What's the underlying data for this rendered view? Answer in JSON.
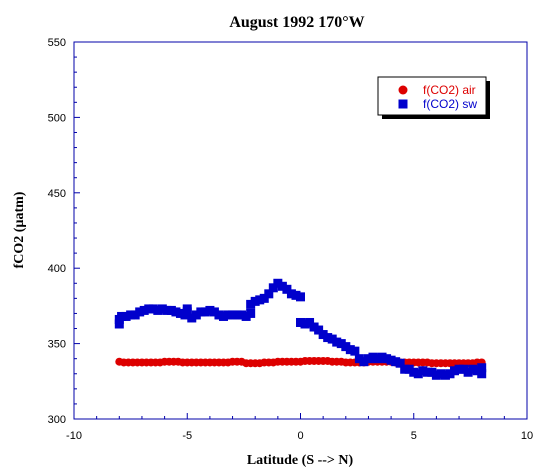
{
  "chart_data": {
    "type": "scatter",
    "title": "August 1992 170°W",
    "xlabel": "Latitude (S --> N)",
    "ylabel": "fCO2 (µatm)",
    "xlim": [
      -10,
      10
    ],
    "ylim": [
      300,
      550
    ],
    "xticks": [
      -10,
      -5,
      0,
      5,
      10
    ],
    "yticks": [
      300,
      350,
      400,
      450,
      500,
      550
    ],
    "grid": false,
    "legend_position": "top-right",
    "series": [
      {
        "name": "f(CO2) air",
        "color": "#dd0000",
        "marker": "circle",
        "points": [
          [
            -8.0,
            338
          ],
          [
            -7.8,
            337.5
          ],
          [
            -7.6,
            337.5
          ],
          [
            -7.4,
            337.5
          ],
          [
            -7.2,
            337.5
          ],
          [
            -7.0,
            337.5
          ],
          [
            -6.8,
            337.5
          ],
          [
            -6.6,
            337.5
          ],
          [
            -6.4,
            337.5
          ],
          [
            -6.2,
            337.5
          ],
          [
            -6.0,
            338
          ],
          [
            -5.8,
            338
          ],
          [
            -5.6,
            338
          ],
          [
            -5.4,
            338
          ],
          [
            -5.2,
            337.5
          ],
          [
            -5.0,
            337.5
          ],
          [
            -4.8,
            337.5
          ],
          [
            -4.6,
            337.5
          ],
          [
            -4.4,
            337.5
          ],
          [
            -4.2,
            337.5
          ],
          [
            -4.0,
            337.5
          ],
          [
            -3.8,
            337.5
          ],
          [
            -3.6,
            337.5
          ],
          [
            -3.4,
            337.5
          ],
          [
            -3.2,
            337.5
          ],
          [
            -3.0,
            338
          ],
          [
            -2.8,
            338
          ],
          [
            -2.6,
            338
          ],
          [
            -2.4,
            337
          ],
          [
            -2.2,
            337
          ],
          [
            -2.0,
            337
          ],
          [
            -1.8,
            337
          ],
          [
            -1.6,
            337.5
          ],
          [
            -1.4,
            337.5
          ],
          [
            -1.2,
            337.5
          ],
          [
            -1.0,
            338
          ],
          [
            -0.8,
            338
          ],
          [
            -0.6,
            338
          ],
          [
            -0.4,
            338
          ],
          [
            -0.2,
            338
          ],
          [
            0.0,
            338
          ],
          [
            0.2,
            338.5
          ],
          [
            0.4,
            338.5
          ],
          [
            0.6,
            338.5
          ],
          [
            0.8,
            338.5
          ],
          [
            1.0,
            338.5
          ],
          [
            1.2,
            338.5
          ],
          [
            1.4,
            338
          ],
          [
            1.6,
            338
          ],
          [
            1.8,
            338
          ],
          [
            2.0,
            337.5
          ],
          [
            2.2,
            337.5
          ],
          [
            2.4,
            337.5
          ],
          [
            2.6,
            337.5
          ],
          [
            2.8,
            337.5
          ],
          [
            3.0,
            338
          ],
          [
            3.2,
            338
          ],
          [
            3.4,
            338
          ],
          [
            3.6,
            338
          ],
          [
            3.8,
            338
          ],
          [
            4.0,
            338
          ],
          [
            4.2,
            337.5
          ],
          [
            4.4,
            337.5
          ],
          [
            4.6,
            337.5
          ],
          [
            4.8,
            337.5
          ],
          [
            5.0,
            337.5
          ],
          [
            5.2,
            337.5
          ],
          [
            5.4,
            337.5
          ],
          [
            5.6,
            337.5
          ],
          [
            5.8,
            337
          ],
          [
            6.0,
            337
          ],
          [
            6.2,
            337
          ],
          [
            6.4,
            337
          ],
          [
            6.6,
            337
          ],
          [
            6.8,
            337
          ],
          [
            7.0,
            337
          ],
          [
            7.2,
            337
          ],
          [
            7.4,
            337
          ],
          [
            7.6,
            337
          ],
          [
            7.8,
            337.5
          ],
          [
            8.0,
            337.5
          ]
        ]
      },
      {
        "name": "f(CO2) sw",
        "color": "#0000cc",
        "marker": "square",
        "points": [
          [
            -8.0,
            363
          ],
          [
            -8.0,
            366
          ],
          [
            -7.9,
            368
          ],
          [
            -7.7,
            368
          ],
          [
            -7.5,
            369
          ],
          [
            -7.3,
            369
          ],
          [
            -7.1,
            371
          ],
          [
            -6.9,
            372
          ],
          [
            -6.7,
            373
          ],
          [
            -6.5,
            373
          ],
          [
            -6.3,
            372
          ],
          [
            -6.1,
            373
          ],
          [
            -5.9,
            372
          ],
          [
            -5.7,
            372
          ],
          [
            -5.5,
            371
          ],
          [
            -5.3,
            370
          ],
          [
            -5.1,
            369
          ],
          [
            -5.0,
            373
          ],
          [
            -5.0,
            371
          ],
          [
            -4.8,
            367
          ],
          [
            -4.6,
            369
          ],
          [
            -4.4,
            371
          ],
          [
            -4.2,
            371
          ],
          [
            -4.0,
            372
          ],
          [
            -3.8,
            371
          ],
          [
            -3.6,
            369
          ],
          [
            -3.4,
            368
          ],
          [
            -3.2,
            369
          ],
          [
            -3.0,
            369
          ],
          [
            -2.8,
            369
          ],
          [
            -2.6,
            369
          ],
          [
            -2.4,
            368
          ],
          [
            -2.2,
            370
          ],
          [
            -2.2,
            376
          ],
          [
            -2.0,
            378
          ],
          [
            -1.8,
            379
          ],
          [
            -1.6,
            380
          ],
          [
            -1.4,
            383
          ],
          [
            -1.2,
            387
          ],
          [
            -1.0,
            390
          ],
          [
            -0.8,
            388
          ],
          [
            -0.6,
            386
          ],
          [
            -0.4,
            383
          ],
          [
            -0.2,
            382
          ],
          [
            0.0,
            381
          ],
          [
            0.0,
            364
          ],
          [
            0.2,
            363
          ],
          [
            0.4,
            364
          ],
          [
            0.6,
            361
          ],
          [
            0.8,
            359
          ],
          [
            1.0,
            356
          ],
          [
            1.2,
            354
          ],
          [
            1.4,
            353
          ],
          [
            1.6,
            351
          ],
          [
            1.8,
            350
          ],
          [
            2.0,
            348
          ],
          [
            2.2,
            346
          ],
          [
            2.4,
            345
          ],
          [
            2.6,
            340
          ],
          [
            2.8,
            338
          ],
          [
            3.0,
            340
          ],
          [
            3.2,
            341
          ],
          [
            3.4,
            340
          ],
          [
            3.6,
            341
          ],
          [
            3.8,
            340
          ],
          [
            4.0,
            339
          ],
          [
            4.2,
            338
          ],
          [
            4.4,
            337
          ],
          [
            4.6,
            333
          ],
          [
            4.8,
            333
          ],
          [
            5.0,
            331
          ],
          [
            5.2,
            330
          ],
          [
            5.4,
            332
          ],
          [
            5.6,
            331
          ],
          [
            5.8,
            331
          ],
          [
            6.0,
            329
          ],
          [
            6.2,
            330
          ],
          [
            6.4,
            329
          ],
          [
            6.6,
            330
          ],
          [
            6.8,
            332
          ],
          [
            7.0,
            333
          ],
          [
            7.2,
            333
          ],
          [
            7.4,
            331
          ],
          [
            7.6,
            333
          ],
          [
            7.8,
            332
          ],
          [
            8.0,
            330
          ],
          [
            8.0,
            334
          ]
        ]
      }
    ]
  }
}
